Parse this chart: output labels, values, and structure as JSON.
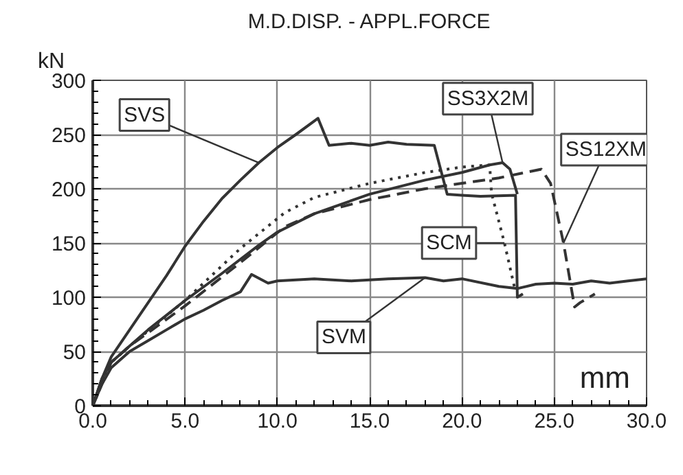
{
  "chart_data": {
    "type": "line",
    "title": "M.D.DISP. - APPL.FORCE",
    "xlabel": "mm",
    "ylabel": "kN",
    "xlim": [
      0,
      30
    ],
    "xticks": [
      {
        "value": 0,
        "label": "0.0"
      },
      {
        "value": 5,
        "label": "5.0"
      },
      {
        "value": 10,
        "label": "10.0"
      },
      {
        "value": 15,
        "label": "15.0"
      },
      {
        "value": 20,
        "label": "20.0"
      },
      {
        "value": 25,
        "label": "25.0"
      },
      {
        "value": 30,
        "label": "30.0"
      }
    ],
    "ylim": [
      0,
      300
    ],
    "yticks": [
      0,
      50,
      100,
      150,
      200,
      250,
      300
    ],
    "grid": true,
    "marker": "none",
    "series": [
      {
        "name": "SVS",
        "color": "#333333",
        "line_style": "solid",
        "x": [
          0,
          0.5,
          1,
          2,
          3,
          4,
          5,
          6,
          7,
          8,
          9,
          10,
          11,
          12.2,
          12.8,
          14,
          15,
          16,
          17,
          18.5,
          19.2,
          20,
          21,
          22.9,
          23.0,
          23.3
        ],
        "values": [
          0,
          25,
          45,
          70,
          95,
          120,
          147,
          170,
          191,
          208,
          224,
          238,
          250,
          265,
          240,
          242,
          240,
          243,
          241,
          240,
          195,
          194,
          193,
          194,
          100,
          103
        ]
      },
      {
        "name": "SS3X2M",
        "color": "#333333",
        "line_style": "solid",
        "x": [
          0,
          0.5,
          1,
          2,
          3,
          5,
          7,
          9,
          10,
          12,
          15,
          18,
          20,
          21.5,
          22.2,
          22.6,
          23.0
        ],
        "values": [
          0,
          25,
          40,
          55,
          70,
          97,
          122,
          148,
          160,
          177,
          195,
          208,
          215,
          222,
          224,
          218,
          195
        ]
      },
      {
        "name": "SCM",
        "color": "#333333",
        "line_style": "dotted",
        "x": [
          0,
          1,
          2,
          5,
          8,
          10.4,
          12,
          15,
          18,
          20,
          21.5,
          21.6,
          22.3,
          22.9
        ],
        "values": [
          0,
          40,
          55,
          97,
          145,
          178,
          192,
          205,
          215,
          220,
          222,
          196,
          150,
          105
        ]
      },
      {
        "name": "SS12XM",
        "color": "#333333",
        "line_style": "dashed",
        "x": [
          0,
          1,
          2,
          5,
          8,
          10.4,
          12,
          15,
          18,
          20,
          22,
          24.3,
          24.8,
          25.5,
          26.1,
          26.4,
          27.2
        ],
        "values": [
          0,
          40,
          55,
          92,
          132,
          165,
          177,
          190,
          200,
          205,
          210,
          218,
          205,
          150,
          91,
          95,
          103
        ]
      },
      {
        "name": "SVM",
        "color": "#333333",
        "line_style": "solid",
        "x": [
          0,
          0.5,
          1,
          2,
          3,
          4,
          5,
          6,
          7,
          8,
          8.6,
          9.5,
          10,
          12,
          14,
          16,
          18,
          19,
          20,
          22,
          23,
          24,
          25,
          26,
          27,
          28,
          29,
          30
        ],
        "values": [
          0,
          20,
          35,
          50,
          60,
          70,
          80,
          88,
          97,
          105,
          121,
          113,
          115,
          117,
          115,
          117,
          118,
          115,
          117,
          110,
          108,
          112,
          113,
          112,
          115,
          113,
          115,
          117
        ]
      }
    ]
  }
}
